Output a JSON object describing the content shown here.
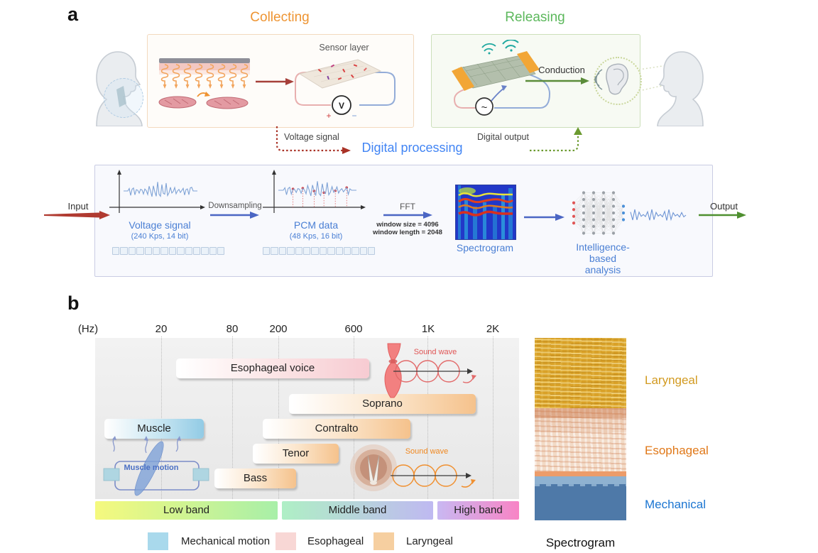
{
  "panel_a": {
    "label": "a",
    "collecting": {
      "title": "Collecting",
      "sensor_layer": "Sensor layer",
      "voltmeter": "V",
      "plus": "+",
      "minus": "−"
    },
    "releasing": {
      "title": "Releasing",
      "conduction": "Conduction",
      "ac_source": "~"
    },
    "flow": {
      "voltage_signal": "Voltage signal",
      "digital_processing": "Digital processing",
      "digital_output": "Digital output"
    },
    "pipeline": {
      "input": "Input",
      "voltage_stage_title": "Voltage signal",
      "voltage_stage_subtitle": "(240 Kps, 14 bit)",
      "downsampling": "Downsampling",
      "pcm_stage_title": "PCM data",
      "pcm_stage_subtitle": "(48 Kps, 16 bit)",
      "fft": "FFT",
      "fft_param1": "window size = 4096",
      "fft_param2": "window length = 2048",
      "spectrogram": "Spectrogram",
      "analysis_line1": "Intelligence-based",
      "analysis_line2": "analysis",
      "output": "Output"
    }
  },
  "panel_b": {
    "label": "b",
    "axis_unit": "(Hz)",
    "ticks": [
      "20",
      "80",
      "200",
      "600",
      "1K",
      "2K"
    ],
    "bars": {
      "esophageal_voice": "Esophageal voice",
      "soprano": "Soprano",
      "muscle": "Muscle",
      "contralto": "Contralto",
      "tenor": "Tenor",
      "bass": "Bass"
    },
    "sound_wave_esophageal": "Sound wave",
    "sound_wave_laryngeal": "Sound wave",
    "muscle_motion": "Muscle motion",
    "bands": [
      "Low band",
      "Middle band",
      "High band"
    ],
    "legend": [
      "Mechanical motion",
      "Esophageal",
      "Laryngeal"
    ],
    "spectro_labels": [
      "Laryngeal",
      "Esophageal",
      "Mechanical"
    ],
    "spectro_caption": "Spectrogram"
  },
  "colors": {
    "collecting_title": "#EE9432",
    "releasing_title": "#5CB85C",
    "digital_processing": "#4285F4",
    "pipeline_text_blue": "#4A7FD4",
    "legend_mechanical": "#A9D9EC",
    "legend_esophageal": "#F8D7D5",
    "legend_laryngeal": "#F6CFA0",
    "laryngeal_label": "#D29A20",
    "esophageal_label": "#E07818",
    "mechanical_label": "#1B75D1"
  },
  "chart_data": {
    "type": "bar",
    "title": "Frequency ranges of mechanical motion and voice bands",
    "xlabel": "Frequency (Hz)",
    "x_axis": {
      "unit": "Hz",
      "scale": "log",
      "ticks": [
        20,
        80,
        200,
        600,
        1000,
        2000
      ]
    },
    "series": [
      {
        "name": "Muscle",
        "category": "Mechanical motion",
        "range_hz": [
          7,
          45
        ]
      },
      {
        "name": "Esophageal voice",
        "category": "Esophageal",
        "range_hz": [
          27,
          670
        ]
      },
      {
        "name": "Bass",
        "category": "Laryngeal",
        "range_hz": [
          60,
          260
        ]
      },
      {
        "name": "Tenor",
        "category": "Laryngeal",
        "range_hz": [
          120,
          480
        ]
      },
      {
        "name": "Contralto",
        "category": "Laryngeal",
        "range_hz": [
          150,
          890
        ]
      },
      {
        "name": "Soprano",
        "category": "Laryngeal",
        "range_hz": [
          230,
          1600
        ]
      }
    ],
    "bands": [
      {
        "name": "Low band",
        "range_hz": [
          0,
          200
        ]
      },
      {
        "name": "Middle band",
        "range_hz": [
          200,
          1100
        ]
      },
      {
        "name": "High band",
        "range_hz": [
          1100,
          2700
        ]
      }
    ]
  }
}
